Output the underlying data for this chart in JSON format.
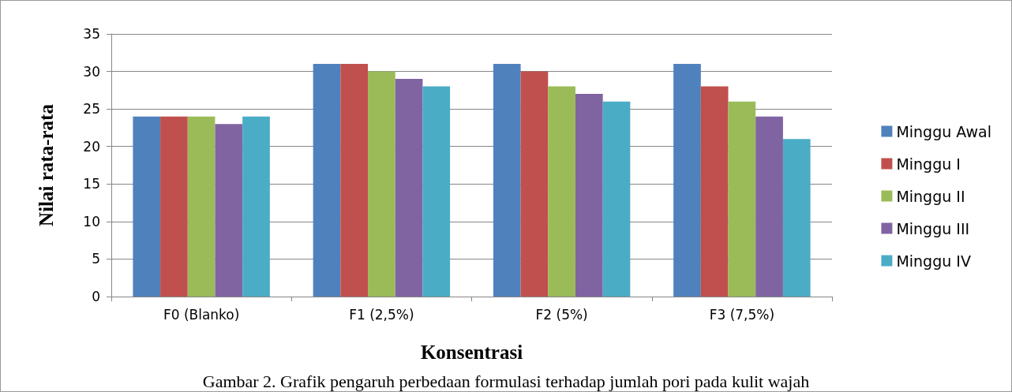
{
  "chart_data": {
    "type": "bar",
    "xlabel": "Konsentrasi",
    "ylabel": "Nilai rata-rata",
    "categories": [
      "F0 (Blanko)",
      "F1 (2,5%)",
      "F2 (5%)",
      "F3 (7,5%)"
    ],
    "series": [
      {
        "name": "Minggu Awal",
        "color": "#4f81bd",
        "values": [
          24,
          31,
          31,
          31
        ]
      },
      {
        "name": "Minggu I",
        "color": "#c0504d",
        "values": [
          24,
          31,
          30,
          28
        ]
      },
      {
        "name": "Minggu II",
        "color": "#9bbb59",
        "values": [
          24,
          30,
          28,
          26
        ]
      },
      {
        "name": "Minggu III",
        "color": "#8064a2",
        "values": [
          23,
          29,
          27,
          24
        ]
      },
      {
        "name": "Minggu IV",
        "color": "#4bacc6",
        "values": [
          24,
          28,
          26,
          21
        ]
      }
    ],
    "ylim": [
      0,
      35
    ],
    "yticks": [
      0,
      5,
      10,
      15,
      20,
      25,
      30,
      35
    ],
    "grid": "y",
    "legend": "right",
    "annotations": [
      "Gambar 2. Grafik pengaruh perbedaan formulasi terhadap jumlah pori pada kulit wajah"
    ]
  }
}
